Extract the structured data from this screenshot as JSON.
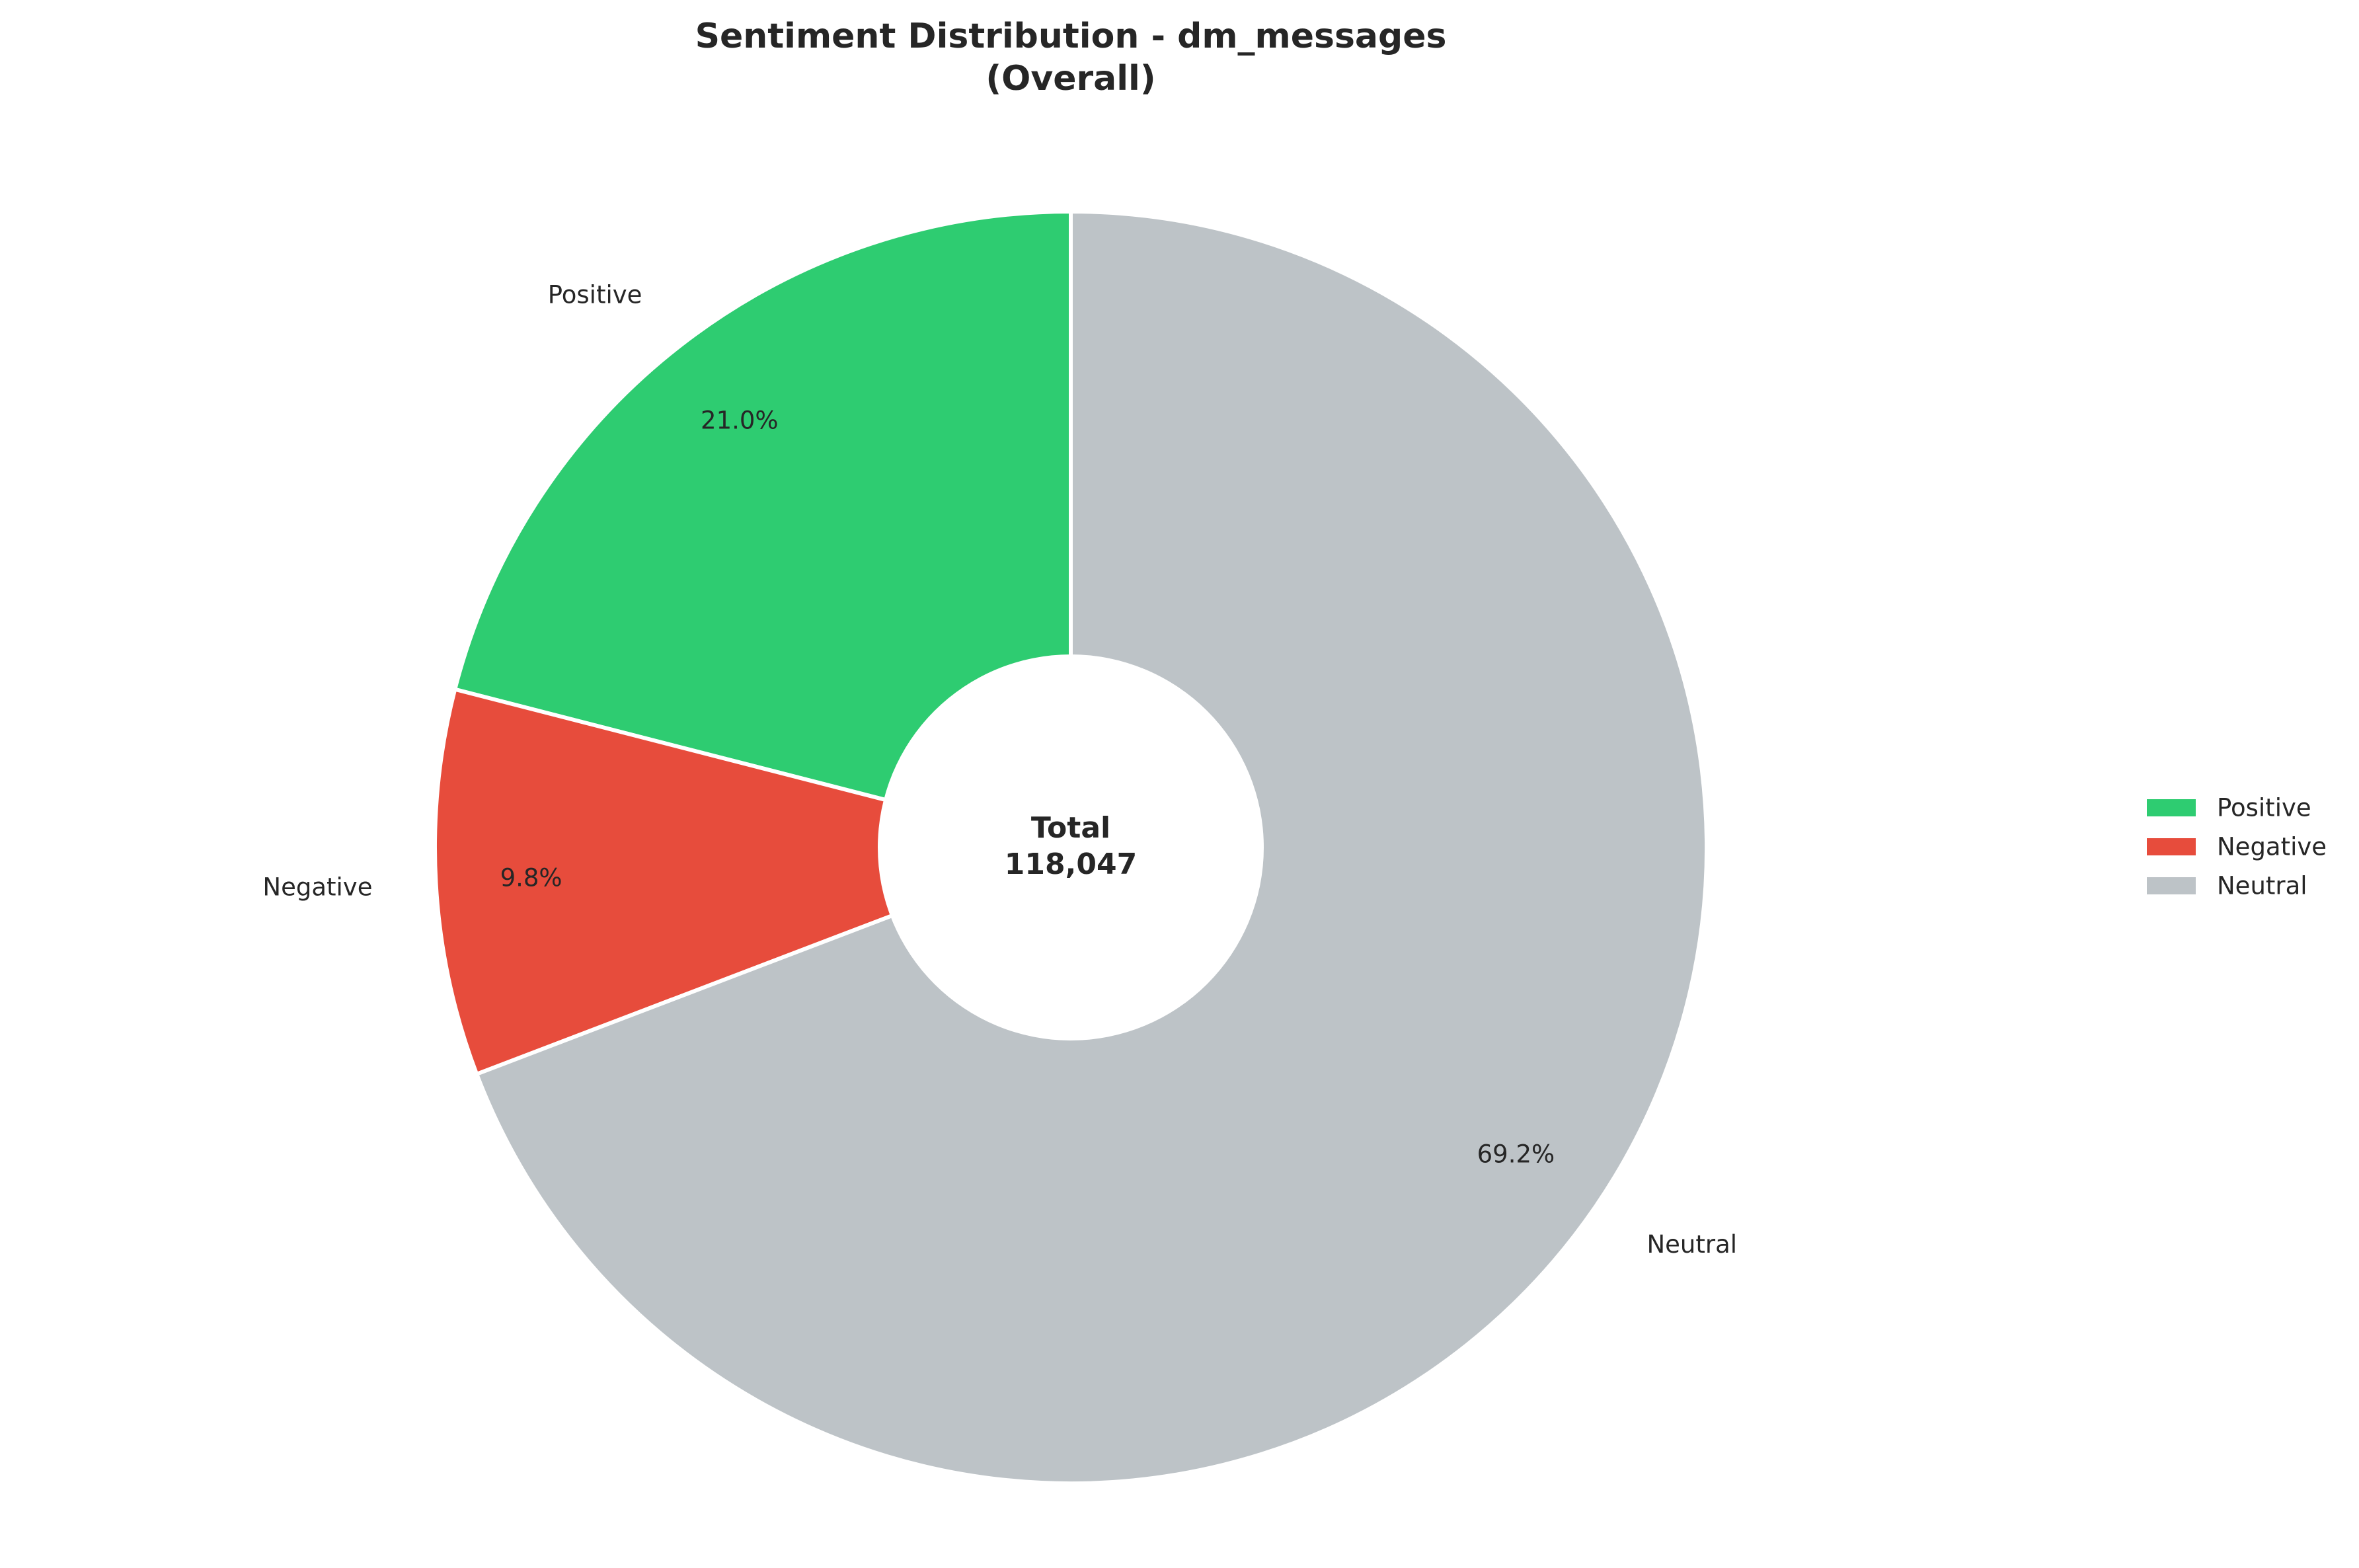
{
  "chart_data": {
    "type": "pie",
    "variant": "donut",
    "title": "Sentiment Distribution - dm_messages",
    "subtitle": "(Overall)",
    "center_label": {
      "title": "Total",
      "value": "118,047"
    },
    "slices": [
      {
        "name": "Positive",
        "value": 21.0,
        "pct_label": "21.0%",
        "color": "#2ecc71"
      },
      {
        "name": "Negative",
        "value": 9.8,
        "pct_label": "9.8%",
        "color": "#e74c3c"
      },
      {
        "name": "Neutral",
        "value": 69.2,
        "pct_label": "69.2%",
        "color": "#bdc3c7"
      }
    ],
    "start_angle_deg": 90,
    "direction": "counterclockwise",
    "legend": {
      "placement": "center-right",
      "entries": [
        "Positive",
        "Negative",
        "Neutral"
      ]
    }
  }
}
